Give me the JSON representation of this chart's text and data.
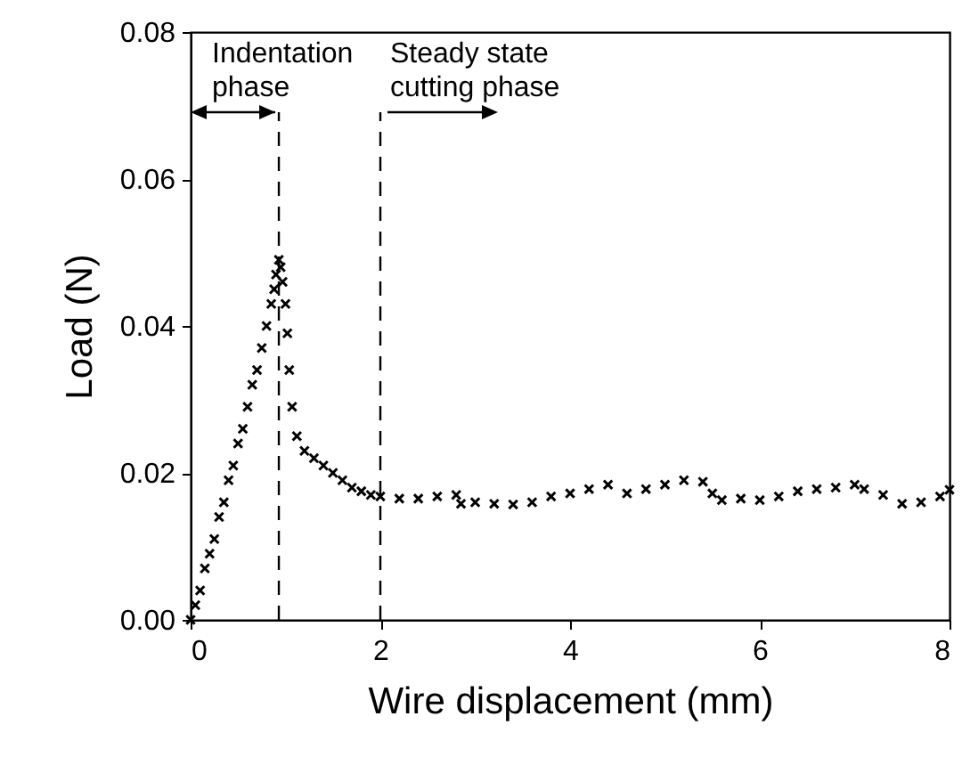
{
  "chart_data": {
    "type": "scatter",
    "xlabel": "Wire displacement (mm)",
    "ylabel": "Load (N)",
    "x": [
      0,
      0.05,
      0.1,
      0.15,
      0.2,
      0.25,
      0.3,
      0.35,
      0.4,
      0.45,
      0.5,
      0.55,
      0.6,
      0.65,
      0.7,
      0.75,
      0.8,
      0.85,
      0.88,
      0.9,
      0.93,
      0.95,
      0.97,
      1.0,
      1.02,
      1.04,
      1.07,
      1.12,
      1.2,
      1.3,
      1.4,
      1.5,
      1.6,
      1.7,
      1.8,
      1.9,
      2.0,
      2.2,
      2.4,
      2.6,
      2.8,
      2.85,
      3.0,
      3.2,
      3.4,
      3.6,
      3.8,
      4.0,
      4.2,
      4.4,
      4.6,
      4.8,
      5.0,
      5.2,
      5.4,
      5.5,
      5.6,
      5.8,
      6.0,
      6.2,
      6.4,
      6.6,
      6.8,
      7.0,
      7.1,
      7.3,
      7.5,
      7.7,
      7.9,
      8.0
    ],
    "series": [
      {
        "color": "#000000",
        "values": [
          0.0,
          0.002,
          0.004,
          0.007,
          0.009,
          0.011,
          0.014,
          0.016,
          0.019,
          0.021,
          0.024,
          0.026,
          0.029,
          0.032,
          0.034,
          0.037,
          0.04,
          0.043,
          0.045,
          0.047,
          0.049,
          0.048,
          0.046,
          0.043,
          0.039,
          0.034,
          0.029,
          0.025,
          0.023,
          0.022,
          0.021,
          0.02,
          0.019,
          0.018,
          0.0175,
          0.017,
          0.0168,
          0.0165,
          0.0165,
          0.0168,
          0.017,
          0.0158,
          0.016,
          0.0158,
          0.0157,
          0.016,
          0.0168,
          0.0172,
          0.0178,
          0.0184,
          0.0172,
          0.0178,
          0.0184,
          0.019,
          0.0188,
          0.0172,
          0.0163,
          0.0165,
          0.0163,
          0.0168,
          0.0175,
          0.0178,
          0.018,
          0.0184,
          0.0178,
          0.017,
          0.0158,
          0.016,
          0.0168,
          0.0177
        ]
      }
    ],
    "xlim": [
      0,
      8
    ],
    "xticks": [
      0,
      2,
      4,
      6,
      8
    ],
    "ylim": [
      0,
      0.08
    ],
    "yticks": [
      {
        "value": 0,
        "label": "0.00"
      },
      {
        "value": 0.02,
        "label": "0.02"
      },
      {
        "value": 0.04,
        "label": "0.04"
      },
      {
        "value": 0.06,
        "label": "0.06"
      },
      {
        "value": 0.08,
        "label": "0.08"
      }
    ],
    "marker": "cross",
    "grid": false,
    "ref_lines": [
      {
        "axis": "x",
        "value": 0.93,
        "line_style": "dashed",
        "color": "#000000"
      },
      {
        "axis": "x",
        "value": 2,
        "line_style": "dashed",
        "color": "#000000"
      }
    ],
    "annotations": [
      "Indentation\nphase",
      "Steady state\ncutting phase"
    ]
  }
}
